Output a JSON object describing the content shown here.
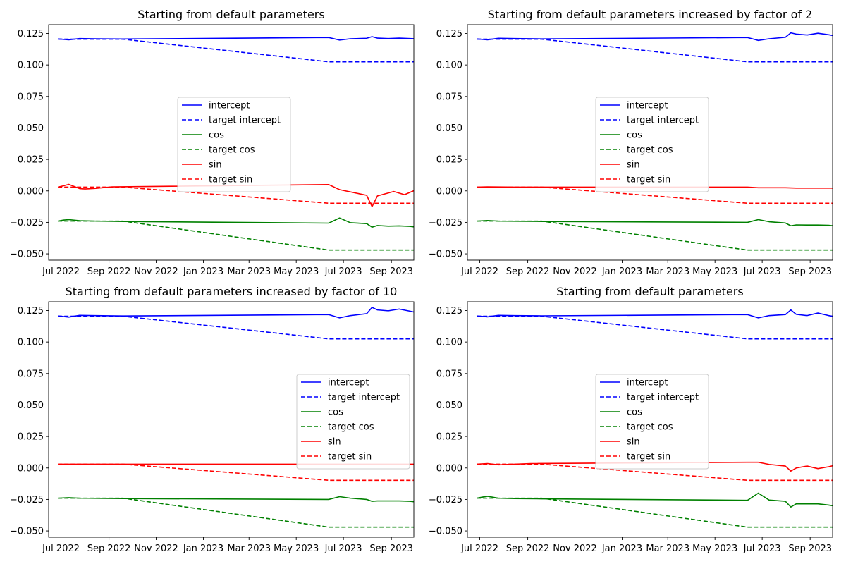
{
  "chart_data": [
    {
      "type": "line",
      "title": "Starting from default parameters",
      "xlabel": "",
      "ylabel": "",
      "x_range": [
        "2022-06-15",
        "2023-09-30"
      ],
      "ylim": [
        -0.055,
        0.132
      ],
      "x_ticks": [
        "Jul 2022",
        "Sep 2022",
        "Nov 2022",
        "Jan 2023",
        "Mar 2023",
        "May 2023",
        "Jul 2023",
        "Sep 2023"
      ],
      "y_ticks": [
        "0.125",
        "0.100",
        "0.075",
        "0.050",
        "0.025",
        "0.000",
        "−0.025",
        "−0.050"
      ],
      "legend_position": "center",
      "series": [
        {
          "name": "intercept",
          "color": "#0000ff",
          "dash": false,
          "x": [
            "2022-06-27",
            "2022-07-11",
            "2022-07-25",
            "2022-08-15",
            "2022-09-19",
            "2023-06-12",
            "2023-06-26",
            "2023-07-10",
            "2023-07-31",
            "2023-08-07",
            "2023-08-14",
            "2023-08-28",
            "2023-09-11",
            "2023-09-25",
            "2023-10-05"
          ],
          "y": [
            0.1207,
            0.12,
            0.121,
            0.1208,
            0.1206,
            0.1218,
            0.1198,
            0.1208,
            0.1212,
            0.1225,
            0.1213,
            0.121,
            0.1213,
            0.121,
            0.1207
          ]
        },
        {
          "name": "target intercept",
          "color": "#0000ff",
          "dash": true,
          "x": [
            "2022-06-27",
            "2022-09-19",
            "2023-06-12",
            "2023-10-05"
          ],
          "y": [
            0.1205,
            0.1205,
            0.1025,
            0.1025
          ]
        },
        {
          "name": "cos",
          "color": "#008000",
          "dash": false,
          "x": [
            "2022-06-27",
            "2022-07-04",
            "2022-07-11",
            "2022-07-25",
            "2022-08-15",
            "2022-09-19",
            "2023-06-12",
            "2023-06-26",
            "2023-07-10",
            "2023-07-31",
            "2023-08-07",
            "2023-08-14",
            "2023-08-28",
            "2023-09-11",
            "2023-09-25",
            "2023-10-05"
          ],
          "y": [
            -0.024,
            -0.0232,
            -0.0228,
            -0.0237,
            -0.024,
            -0.0243,
            -0.0256,
            -0.0215,
            -0.0253,
            -0.026,
            -0.0288,
            -0.0275,
            -0.028,
            -0.0278,
            -0.0282,
            -0.029
          ]
        },
        {
          "name": "target cos",
          "color": "#008000",
          "dash": true,
          "x": [
            "2022-06-27",
            "2022-09-19",
            "2023-06-12",
            "2023-10-05"
          ],
          "y": [
            -0.024,
            -0.024,
            -0.047,
            -0.047
          ]
        },
        {
          "name": "sin",
          "color": "#ff0000",
          "dash": false,
          "x": [
            "2022-06-27",
            "2022-07-04",
            "2022-07-11",
            "2022-07-25",
            "2022-08-01",
            "2022-08-15",
            "2022-09-05",
            "2023-06-12",
            "2023-06-26",
            "2023-07-31",
            "2023-08-07",
            "2023-08-14",
            "2023-09-04",
            "2023-09-18",
            "2023-10-05"
          ],
          "y": [
            0.003,
            0.004,
            0.0052,
            0.0018,
            0.0015,
            0.002,
            0.0032,
            0.005,
            0.001,
            -0.0035,
            -0.0125,
            -0.004,
            -0.0005,
            -0.003,
            0.0015
          ]
        },
        {
          "name": "target sin",
          "color": "#ff0000",
          "dash": true,
          "x": [
            "2022-06-27",
            "2022-09-19",
            "2023-06-12",
            "2023-10-05"
          ],
          "y": [
            0.003,
            0.003,
            -0.0098,
            -0.0098
          ]
        }
      ]
    },
    {
      "type": "line",
      "title": "Starting from default parameters increased by factor of 2",
      "xlabel": "",
      "ylabel": "",
      "x_range": [
        "2022-06-15",
        "2023-09-30"
      ],
      "ylim": [
        -0.055,
        0.132
      ],
      "x_ticks": [
        "Jul 2022",
        "Sep 2022",
        "Nov 2022",
        "Jan 2023",
        "Mar 2023",
        "May 2023",
        "Jul 2023",
        "Sep 2023"
      ],
      "y_ticks": [
        "0.125",
        "0.100",
        "0.075",
        "0.050",
        "0.025",
        "0.000",
        "−0.025",
        "−0.050"
      ],
      "legend_position": "center",
      "series": [
        {
          "name": "intercept",
          "color": "#0000ff",
          "dash": false,
          "x": [
            "2022-06-27",
            "2022-07-11",
            "2022-07-25",
            "2022-08-15",
            "2022-09-19",
            "2023-06-12",
            "2023-06-26",
            "2023-07-10",
            "2023-07-31",
            "2023-08-07",
            "2023-08-14",
            "2023-08-28",
            "2023-09-11",
            "2023-09-25",
            "2023-10-05"
          ],
          "y": [
            0.1207,
            0.12,
            0.1212,
            0.121,
            0.1207,
            0.1218,
            0.1195,
            0.1208,
            0.122,
            0.1255,
            0.1245,
            0.1238,
            0.1252,
            0.124,
            0.1228
          ]
        },
        {
          "name": "target intercept",
          "color": "#0000ff",
          "dash": true,
          "x": [
            "2022-06-27",
            "2022-09-19",
            "2023-06-12",
            "2023-10-05"
          ],
          "y": [
            0.1205,
            0.1205,
            0.1025,
            0.1025
          ]
        },
        {
          "name": "cos",
          "color": "#008000",
          "dash": false,
          "x": [
            "2022-06-27",
            "2022-07-11",
            "2022-07-25",
            "2022-08-15",
            "2022-09-19",
            "2023-06-12",
            "2023-06-26",
            "2023-07-10",
            "2023-07-31",
            "2023-08-07",
            "2023-08-14",
            "2023-08-28",
            "2023-09-11",
            "2023-09-25",
            "2023-10-05"
          ],
          "y": [
            -0.024,
            -0.0235,
            -0.024,
            -0.0241,
            -0.0243,
            -0.025,
            -0.0228,
            -0.0245,
            -0.0255,
            -0.0277,
            -0.027,
            -0.0271,
            -0.0271,
            -0.0273,
            -0.028
          ]
        },
        {
          "name": "target cos",
          "color": "#008000",
          "dash": true,
          "x": [
            "2022-06-27",
            "2022-09-19",
            "2023-06-12",
            "2023-10-05"
          ],
          "y": [
            -0.024,
            -0.024,
            -0.047,
            -0.047
          ]
        },
        {
          "name": "sin",
          "color": "#ff0000",
          "dash": false,
          "x": [
            "2022-06-27",
            "2022-07-11",
            "2022-08-15",
            "2022-09-19",
            "2023-06-12",
            "2023-06-26",
            "2023-07-31",
            "2023-08-14",
            "2023-10-05"
          ],
          "y": [
            0.003,
            0.0032,
            0.003,
            0.003,
            0.003,
            0.0025,
            0.0025,
            0.0022,
            0.0022
          ]
        },
        {
          "name": "target sin",
          "color": "#ff0000",
          "dash": true,
          "x": [
            "2022-06-27",
            "2022-09-19",
            "2023-06-12",
            "2023-10-05"
          ],
          "y": [
            0.003,
            0.003,
            -0.0098,
            -0.0098
          ]
        }
      ]
    },
    {
      "type": "line",
      "title": "Starting from default parameters increased by factor of 10",
      "xlabel": "",
      "ylabel": "",
      "x_range": [
        "2022-06-15",
        "2023-09-30"
      ],
      "ylim": [
        -0.055,
        0.132
      ],
      "x_ticks": [
        "Jul 2022",
        "Sep 2022",
        "Nov 2022",
        "Jan 2023",
        "Mar 2023",
        "May 2023",
        "Jul 2023",
        "Sep 2023"
      ],
      "y_ticks": [
        "0.125",
        "0.100",
        "0.075",
        "0.050",
        "0.025",
        "0.000",
        "−0.025",
        "−0.050"
      ],
      "legend_position": "center-right",
      "series": [
        {
          "name": "intercept",
          "color": "#0000ff",
          "dash": false,
          "x": [
            "2022-06-27",
            "2022-07-11",
            "2022-07-25",
            "2022-08-15",
            "2022-09-19",
            "2023-06-12",
            "2023-06-26",
            "2023-07-10",
            "2023-07-31",
            "2023-08-07",
            "2023-08-14",
            "2023-08-28",
            "2023-09-11",
            "2023-09-25",
            "2023-10-05"
          ],
          "y": [
            0.1207,
            0.1198,
            0.1212,
            0.121,
            0.1207,
            0.1218,
            0.1192,
            0.121,
            0.1225,
            0.1275,
            0.1255,
            0.1248,
            0.1262,
            0.1245,
            0.1232
          ]
        },
        {
          "name": "target intercept",
          "color": "#0000ff",
          "dash": true,
          "x": [
            "2022-06-27",
            "2022-09-19",
            "2023-06-12",
            "2023-10-05"
          ],
          "y": [
            0.1205,
            0.1205,
            0.1025,
            0.1025
          ]
        },
        {
          "name": "cos",
          "color": "#008000",
          "dash": false,
          "x": [
            "2022-06-27",
            "2022-07-11",
            "2022-07-25",
            "2022-08-15",
            "2022-09-19",
            "2023-06-12",
            "2023-06-26",
            "2023-07-10",
            "2023-07-31",
            "2023-08-07",
            "2023-08-14",
            "2023-08-28",
            "2023-09-11",
            "2023-09-25",
            "2023-10-05"
          ],
          "y": [
            -0.024,
            -0.0236,
            -0.024,
            -0.0241,
            -0.0243,
            -0.025,
            -0.0228,
            -0.024,
            -0.025,
            -0.0265,
            -0.0262,
            -0.0262,
            -0.0262,
            -0.0265,
            -0.0272
          ]
        },
        {
          "name": "target cos",
          "color": "#008000",
          "dash": true,
          "x": [
            "2022-06-27",
            "2022-09-19",
            "2023-06-12",
            "2023-10-05"
          ],
          "y": [
            -0.024,
            -0.024,
            -0.047,
            -0.047
          ]
        },
        {
          "name": "sin",
          "color": "#ff0000",
          "dash": false,
          "x": [
            "2022-06-27",
            "2022-09-19",
            "2023-06-12",
            "2023-07-31",
            "2023-10-05"
          ],
          "y": [
            0.003,
            0.003,
            0.003,
            0.003,
            0.003
          ]
        },
        {
          "name": "target sin",
          "color": "#ff0000",
          "dash": true,
          "x": [
            "2022-06-27",
            "2022-09-19",
            "2023-06-12",
            "2023-10-05"
          ],
          "y": [
            0.003,
            0.003,
            -0.0098,
            -0.0098
          ]
        }
      ]
    },
    {
      "type": "line",
      "title": "Starting from default parameters",
      "xlabel": "",
      "ylabel": "",
      "x_range": [
        "2022-06-15",
        "2023-09-30"
      ],
      "ylim": [
        -0.055,
        0.132
      ],
      "x_ticks": [
        "Jul 2022",
        "Sep 2022",
        "Nov 2022",
        "Jan 2023",
        "Mar 2023",
        "May 2023",
        "Jul 2023",
        "Sep 2023"
      ],
      "y_ticks": [
        "0.125",
        "0.100",
        "0.075",
        "0.050",
        "0.025",
        "0.000",
        "−0.025",
        "−0.050"
      ],
      "legend_position": "center",
      "series": [
        {
          "name": "intercept",
          "color": "#0000ff",
          "dash": false,
          "x": [
            "2022-06-27",
            "2022-07-11",
            "2022-07-25",
            "2022-08-15",
            "2022-09-19",
            "2023-06-12",
            "2023-06-26",
            "2023-07-10",
            "2023-07-31",
            "2023-08-07",
            "2023-08-14",
            "2023-08-28",
            "2023-09-11",
            "2023-09-25",
            "2023-10-05"
          ],
          "y": [
            0.1207,
            0.12,
            0.1212,
            0.121,
            0.1208,
            0.1218,
            0.1192,
            0.121,
            0.1218,
            0.1255,
            0.122,
            0.121,
            0.123,
            0.121,
            0.12
          ]
        },
        {
          "name": "target intercept",
          "color": "#0000ff",
          "dash": true,
          "x": [
            "2022-06-27",
            "2022-09-19",
            "2023-06-12",
            "2023-10-05"
          ],
          "y": [
            0.1205,
            0.1205,
            0.1025,
            0.1025
          ]
        },
        {
          "name": "cos",
          "color": "#008000",
          "dash": false,
          "x": [
            "2022-06-27",
            "2022-07-04",
            "2022-07-11",
            "2022-07-25",
            "2022-08-15",
            "2022-09-19",
            "2023-06-12",
            "2023-06-26",
            "2023-07-10",
            "2023-07-31",
            "2023-08-07",
            "2023-08-14",
            "2023-08-28",
            "2023-09-11",
            "2023-09-25",
            "2023-10-05"
          ],
          "y": [
            -0.024,
            -0.0232,
            -0.0225,
            -0.024,
            -0.0243,
            -0.0245,
            -0.0257,
            -0.02,
            -0.0255,
            -0.0265,
            -0.031,
            -0.0285,
            -0.0285,
            -0.0285,
            -0.0295,
            -0.0305
          ]
        },
        {
          "name": "target cos",
          "color": "#008000",
          "dash": true,
          "x": [
            "2022-06-27",
            "2022-09-19",
            "2023-06-12",
            "2023-10-05"
          ],
          "y": [
            -0.024,
            -0.024,
            -0.047,
            -0.047
          ]
        },
        {
          "name": "sin",
          "color": "#ff0000",
          "dash": false,
          "x": [
            "2022-06-27",
            "2022-07-11",
            "2022-07-25",
            "2022-08-15",
            "2022-09-05",
            "2023-06-12",
            "2023-06-26",
            "2023-07-10",
            "2023-07-31",
            "2023-08-07",
            "2023-08-14",
            "2023-08-28",
            "2023-09-11",
            "2023-09-25",
            "2023-10-05"
          ],
          "y": [
            0.003,
            0.0035,
            0.0025,
            0.003,
            0.0035,
            0.0045,
            0.0045,
            0.0028,
            0.0015,
            -0.0025,
            0.0,
            0.0015,
            -0.0005,
            0.001,
            0.0025
          ]
        },
        {
          "name": "target sin",
          "color": "#ff0000",
          "dash": true,
          "x": [
            "2022-06-27",
            "2022-09-19",
            "2023-06-12",
            "2023-10-05"
          ],
          "y": [
            0.003,
            0.003,
            -0.0098,
            -0.0098
          ]
        }
      ]
    }
  ]
}
